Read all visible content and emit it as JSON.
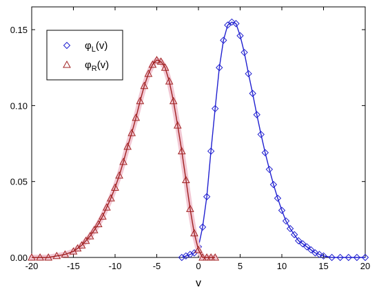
{
  "chart_data": {
    "type": "line",
    "xlabel": "v",
    "ylabel": "",
    "xlim": [
      -20,
      20
    ],
    "ylim": [
      0,
      0.165
    ],
    "xticks": [
      -20,
      -15,
      -10,
      -5,
      0,
      5,
      10,
      15,
      20
    ],
    "xtick_labels": [
      "-20",
      "-15",
      "-10",
      "-5",
      "0",
      "5",
      "10",
      "15",
      "20"
    ],
    "yticks": [
      0,
      0.05,
      0.1,
      0.15
    ],
    "ytick_labels": [
      "0.00",
      "0.05",
      "0.10",
      "0.15"
    ],
    "grid": false,
    "legend_placement": "top-left",
    "series": [
      {
        "name": "φL(v)",
        "legend_main": "φ",
        "legend_sub": "L",
        "legend_tail": "(v)",
        "color": "#1f1fd0",
        "marker": "diamond",
        "x": [
          -2.0,
          -1.5,
          -1.0,
          -0.5,
          0.0,
          0.5,
          1.0,
          1.5,
          2.0,
          2.5,
          3.0,
          3.5,
          4.0,
          4.5,
          5.0,
          5.5,
          6.0,
          6.5,
          7.0,
          7.5,
          8.0,
          8.5,
          9.0,
          9.5,
          10.0,
          10.5,
          11.0,
          11.5,
          12.0,
          12.5,
          13.0,
          13.5,
          14.0,
          14.5,
          15.0,
          16.0,
          17.0,
          18.0,
          19.0,
          20.0
        ],
        "y": [
          0.0,
          0.001,
          0.002,
          0.003,
          0.007,
          0.02,
          0.04,
          0.07,
          0.098,
          0.125,
          0.143,
          0.153,
          0.155,
          0.154,
          0.146,
          0.135,
          0.121,
          0.108,
          0.094,
          0.081,
          0.069,
          0.058,
          0.048,
          0.039,
          0.031,
          0.024,
          0.019,
          0.015,
          0.011,
          0.009,
          0.007,
          0.005,
          0.003,
          0.002,
          0.001,
          0.0,
          0.0,
          0.0,
          0.0,
          0.0
        ]
      },
      {
        "name": "φR(v)",
        "legend_main": "φ",
        "legend_sub": "R",
        "legend_tail": "(v)",
        "color": "#a02020",
        "marker": "triangle",
        "x": [
          -20.0,
          -19.0,
          -18.0,
          -17.0,
          -16.0,
          -15.0,
          -14.5,
          -14.0,
          -13.5,
          -13.0,
          -12.5,
          -12.0,
          -11.5,
          -11.0,
          -10.5,
          -10.0,
          -9.5,
          -9.0,
          -8.5,
          -8.0,
          -7.5,
          -7.0,
          -6.5,
          -6.0,
          -5.5,
          -5.0,
          -4.5,
          -4.0,
          -3.5,
          -3.0,
          -2.5,
          -2.0,
          -1.5,
          -1.0,
          -0.5,
          0.0,
          0.5,
          1.0,
          1.5,
          2.0
        ],
        "y": [
          0.0,
          0.0,
          0.0,
          0.001,
          0.002,
          0.004,
          0.006,
          0.008,
          0.011,
          0.014,
          0.018,
          0.022,
          0.027,
          0.033,
          0.039,
          0.046,
          0.054,
          0.063,
          0.073,
          0.082,
          0.092,
          0.103,
          0.113,
          0.121,
          0.127,
          0.13,
          0.129,
          0.125,
          0.116,
          0.103,
          0.087,
          0.07,
          0.051,
          0.032,
          0.016,
          0.005,
          0.0,
          0.0,
          0.0,
          0.0
        ]
      }
    ]
  }
}
